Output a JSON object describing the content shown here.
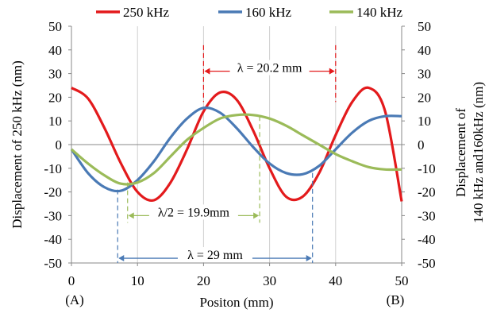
{
  "chart_data": {
    "type": "line",
    "xlabel": "Positon (mm)",
    "ylabel_left": "Displacement of  250 kHz (nm)",
    "ylabel_right_lines": [
      "Displacement of",
      "140 kHz and160kHz (nm)"
    ],
    "xlim": [
      0,
      50
    ],
    "ylim_left": [
      -50,
      50
    ],
    "ylim_right": [
      -50,
      50
    ],
    "x_ticks": [
      0,
      10,
      20,
      30,
      40,
      50
    ],
    "y_ticks": [
      50,
      40,
      30,
      20,
      10,
      0,
      -10,
      -20,
      -30,
      -40,
      -50
    ],
    "grid": "vertical",
    "legend_position": "top",
    "end_labels": {
      "left": "(A)",
      "right": "(B)"
    },
    "series": [
      {
        "name": "250 kHz",
        "color": "#e31a1c",
        "axis": "left",
        "x": [
          0,
          2.5,
          5,
          7.5,
          10,
          12.5,
          15,
          17.5,
          20,
          22.5,
          25,
          27.5,
          30,
          32.5,
          35,
          37.5,
          40,
          42.5,
          45,
          47.5,
          50
        ],
        "values": [
          24,
          19.5,
          7,
          -8,
          -20,
          -23.5,
          -16,
          -2,
          14,
          22,
          19,
          6,
          -10,
          -22,
          -22,
          -12,
          4,
          18,
          24,
          14,
          -24
        ]
      },
      {
        "name": "160 kHz",
        "color": "#4a7ab5",
        "axis": "right",
        "x": [
          0,
          2.5,
          5,
          7.5,
          10,
          12.5,
          15,
          17.5,
          20,
          22.5,
          25,
          27.5,
          30,
          32.5,
          35,
          37.5,
          40,
          42.5,
          45,
          47.5,
          50
        ],
        "values": [
          -2,
          -12,
          -18,
          -19.5,
          -15,
          -7,
          3,
          11,
          15.5,
          13.5,
          7,
          -1,
          -8,
          -12,
          -12.5,
          -9,
          -2,
          5,
          10,
          12,
          12
        ]
      },
      {
        "name": "140 kHz",
        "color": "#9bbb59",
        "axis": "right",
        "x": [
          0,
          2.5,
          5,
          7.5,
          10,
          12.5,
          15,
          17.5,
          20,
          22.5,
          25,
          27.5,
          30,
          32.5,
          35,
          37.5,
          40,
          42.5,
          45,
          47.5,
          50
        ],
        "values": [
          -2,
          -8,
          -13,
          -16.5,
          -16,
          -12,
          -5,
          2,
          7,
          11,
          12.5,
          12.5,
          11,
          8,
          4,
          0,
          -4,
          -7,
          -9.5,
          -10.5,
          -10.5
        ]
      }
    ],
    "annotations": [
      {
        "text": "λ = 20.2 mm",
        "color": "#e31a1c",
        "x_start": 20,
        "x_end": 40,
        "y": 31
      },
      {
        "text": "λ/2 = 19.9mm",
        "color": "#9bbb59",
        "x_start": 8.5,
        "x_end": 28.5,
        "y": -30
      },
      {
        "text": "λ = 29 mm",
        "color": "#4a7ab5",
        "x_start": 7,
        "x_end": 36.5,
        "y": -48
      }
    ]
  }
}
